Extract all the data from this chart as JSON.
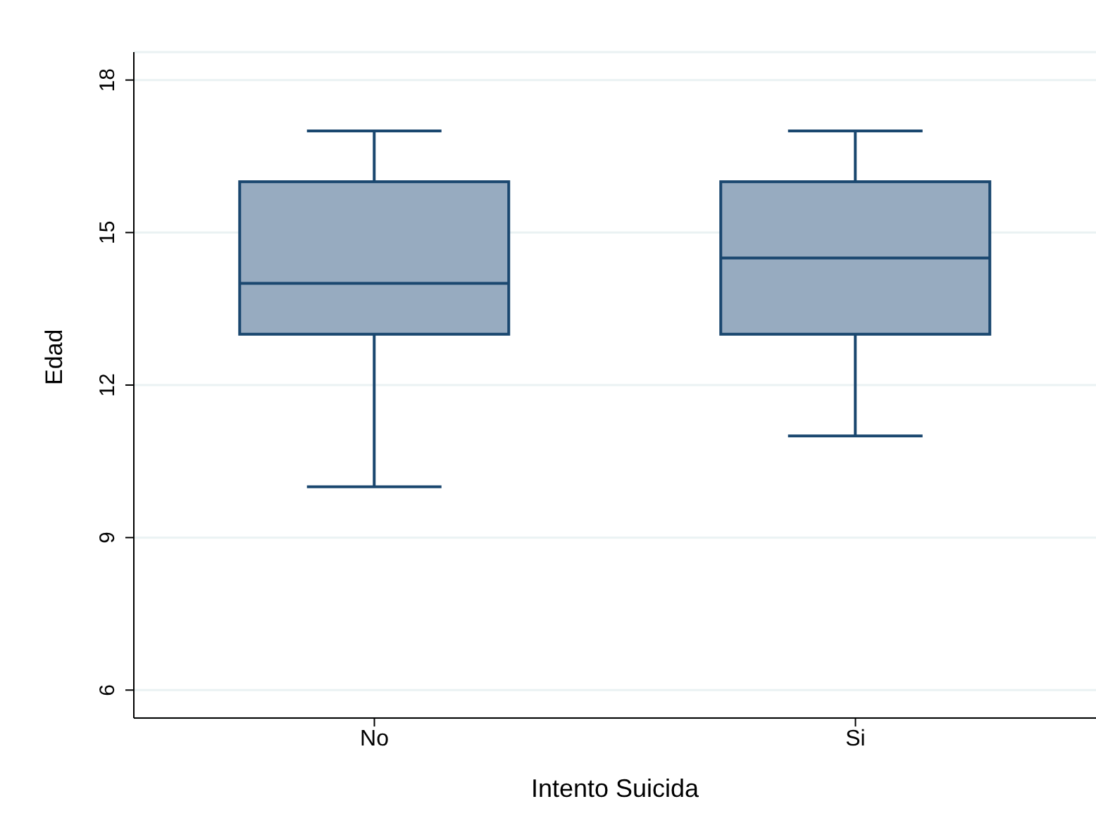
{
  "chart_data": {
    "type": "box",
    "categories": [
      "No",
      "Si"
    ],
    "xlabel": "Intento Suicida",
    "ylabel": "Edad",
    "ylim": [
      5.45,
      18.55
    ],
    "yticks": [
      6,
      9,
      12,
      15,
      18
    ],
    "grid": "y",
    "series": [
      {
        "color": "#97abc0",
        "boxes": [
          {
            "low": 10,
            "q1": 13,
            "median": 14,
            "q3": 16,
            "high": 17
          },
          {
            "low": 11,
            "q1": 13,
            "median": 14.5,
            "q3": 16,
            "high": 17
          }
        ]
      }
    ]
  }
}
